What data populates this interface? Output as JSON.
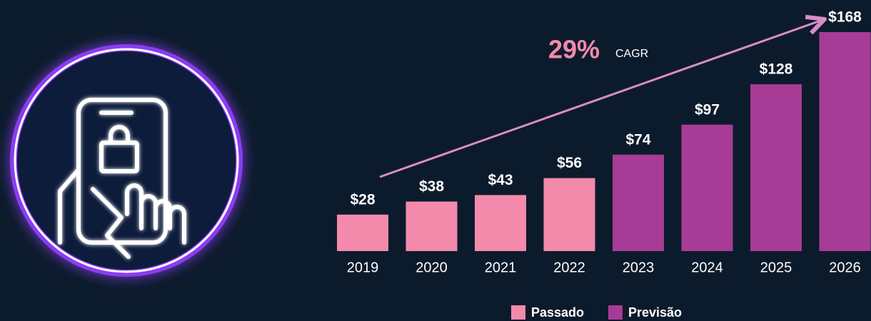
{
  "chart_data": {
    "type": "bar",
    "categories": [
      "2019",
      "2020",
      "2021",
      "2022",
      "2023",
      "2024",
      "2025",
      "2026"
    ],
    "series": [
      {
        "name": "Passado",
        "color": "#f48aab",
        "values": [
          28,
          38,
          43,
          56,
          null,
          null,
          null,
          null
        ],
        "value_labels": [
          "$28",
          "$38",
          "$43",
          "$56",
          null,
          null,
          null,
          null
        ]
      },
      {
        "name": "Previsão",
        "color": "#a63c96",
        "values": [
          null,
          null,
          null,
          null,
          74,
          97,
          128,
          168
        ],
        "value_labels": [
          null,
          null,
          null,
          null,
          "$74",
          "$97",
          "$128",
          "$168"
        ]
      }
    ],
    "annotations": [
      {
        "text": "29%"
      },
      {
        "text": "CAGR"
      }
    ]
  }
}
